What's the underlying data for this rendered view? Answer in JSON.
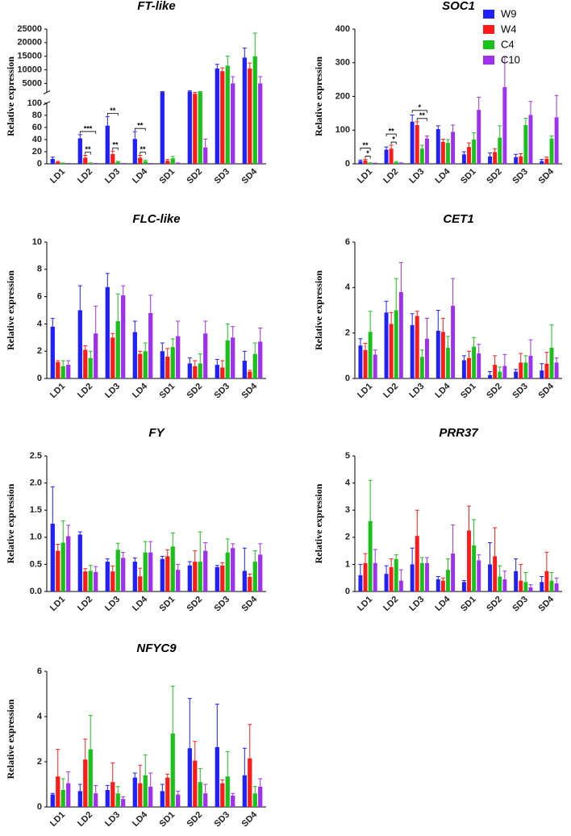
{
  "chart_data": [
    {
      "type": "bar",
      "title": "FT-like",
      "y_label": "Relative expression",
      "categories": [
        "LD1",
        "LD2",
        "LD3",
        "LD4",
        "SD1",
        "SD2",
        "SD3",
        "SD4"
      ],
      "series": [
        {
          "name": "W9",
          "color": "#1f1fff",
          "values": [
            8,
            42,
            63,
            41,
            1800,
            2000,
            10500,
            14500
          ],
          "errors": [
            3,
            6,
            15,
            12,
            200,
            300,
            1500,
            3500
          ]
        },
        {
          "name": "W4",
          "color": "#ff1a1a",
          "values": [
            3,
            10,
            16,
            10,
            5,
            1500,
            9500,
            10500
          ],
          "errors": [
            1,
            4,
            5,
            4,
            2,
            200,
            1200,
            2000
          ]
        },
        {
          "name": "C4",
          "color": "#19c219",
          "values": [
            1,
            1,
            3,
            4,
            9,
            1800,
            11500,
            15000
          ],
          "errors": [
            0.5,
            0.5,
            1,
            2,
            3,
            200,
            3500,
            8500
          ]
        },
        {
          "name": "C10",
          "color": "#a030f0",
          "values": [
            0.5,
            0.5,
            0.5,
            0.5,
            1,
            27,
            5000,
            5000
          ],
          "errors": [
            0.2,
            0.2,
            0.2,
            0.2,
            0.5,
            14,
            2500,
            2500
          ]
        }
      ],
      "ylim": [
        0,
        25000
      ],
      "axis_break": [
        100,
        1700
      ],
      "yticks": [
        0,
        20,
        40,
        60,
        80,
        100,
        5000,
        10000,
        15000,
        20000,
        25000
      ],
      "annotations": [
        {
          "text": "**",
          "category": "LD2",
          "series": [
            "W4",
            "C4"
          ]
        },
        {
          "text": "***",
          "category": "LD2",
          "series": [
            "W9",
            "C10"
          ]
        },
        {
          "text": "**",
          "category": "LD3",
          "series": [
            "W4",
            "C4"
          ]
        },
        {
          "text": "**",
          "category": "LD3",
          "series": [
            "W9",
            "C4"
          ]
        },
        {
          "text": "**",
          "category": "LD4",
          "series": [
            "W4",
            "C4"
          ]
        },
        {
          "text": "**",
          "category": "LD4",
          "series": [
            "W9",
            "C4"
          ]
        }
      ]
    },
    {
      "type": "bar",
      "title": "SOC1",
      "y_label": "Relative expression",
      "legend": "top-right",
      "categories": [
        "LD1",
        "LD2",
        "LD3",
        "LD4",
        "SD1",
        "SD2",
        "SD3",
        "SD4"
      ],
      "series": [
        {
          "name": "W9",
          "color": "#1f1fff",
          "values": [
            8,
            42,
            125,
            103,
            28,
            22,
            20,
            8
          ],
          "errors": [
            3,
            8,
            20,
            10,
            8,
            10,
            8,
            5
          ]
        },
        {
          "name": "W4",
          "color": "#ff1a1a",
          "values": [
            10,
            45,
            115,
            65,
            50,
            35,
            22,
            15
          ],
          "errors": [
            3,
            10,
            10,
            8,
            12,
            10,
            8,
            5
          ]
        },
        {
          "name": "C4",
          "color": "#19c219",
          "values": [
            2,
            5,
            45,
            62,
            72,
            78,
            115,
            75
          ],
          "errors": [
            1,
            2,
            10,
            10,
            20,
            35,
            20,
            8
          ]
        },
        {
          "name": "C10",
          "color": "#a030f0",
          "values": [
            1,
            2,
            75,
            95,
            160,
            228,
            145,
            138
          ],
          "errors": [
            1,
            1,
            8,
            20,
            38,
            90,
            40,
            65
          ]
        }
      ],
      "ylim": [
        0,
        400
      ],
      "yticks": [
        0,
        100,
        200,
        300,
        400
      ],
      "annotations": [
        {
          "text": "*",
          "category": "LD1",
          "series": [
            "W4",
            "C4"
          ]
        },
        {
          "text": "**",
          "category": "LD1",
          "series": [
            "W9",
            "C4"
          ]
        },
        {
          "text": "*",
          "category": "LD2",
          "series": [
            "W4",
            "C4"
          ]
        },
        {
          "text": "**",
          "category": "LD2",
          "series": [
            "W9",
            "C4"
          ]
        },
        {
          "text": "**",
          "category": "LD3",
          "series": [
            "W4",
            "C10"
          ]
        },
        {
          "text": "*",
          "category": "LD3",
          "series": [
            "W9",
            "C10"
          ]
        }
      ]
    },
    {
      "type": "bar",
      "title": "FLC-like",
      "y_label": "Relative expression",
      "categories": [
        "LD1",
        "LD2",
        "LD3",
        "LD4",
        "SD1",
        "SD2",
        "SD3",
        "SD4"
      ],
      "series": [
        {
          "name": "W9",
          "color": "#1f1fff",
          "values": [
            3.8,
            5,
            6.7,
            3.4,
            2,
            1.1,
            1,
            1.3
          ],
          "errors": [
            0.6,
            1.8,
            1,
            0.8,
            0.6,
            0.4,
            0.4,
            0.7
          ]
        },
        {
          "name": "W4",
          "color": "#ff1a1a",
          "values": [
            1.2,
            2.1,
            3,
            1.8,
            1.6,
            0.9,
            0.8,
            0.5
          ],
          "errors": [
            0.1,
            0.3,
            0.3,
            0.2,
            0.6,
            0.4,
            0.5,
            0.1
          ]
        },
        {
          "name": "C4",
          "color": "#19c219",
          "values": [
            0.9,
            1.5,
            4.2,
            2,
            2.3,
            1.1,
            2.8,
            1.8
          ],
          "errors": [
            0.4,
            0.5,
            2,
            0.6,
            0.6,
            0.7,
            1.2,
            0.8
          ]
        },
        {
          "name": "C10",
          "color": "#a030f0",
          "values": [
            1,
            3.3,
            6.1,
            4.8,
            3.1,
            3.3,
            3,
            2.7
          ],
          "errors": [
            0.3,
            2,
            0.7,
            1.3,
            1.1,
            0.9,
            0.8,
            1
          ]
        }
      ],
      "ylim": [
        0,
        10
      ],
      "yticks": [
        0,
        2,
        4,
        6,
        8,
        10
      ]
    },
    {
      "type": "bar",
      "title": "CET1",
      "y_label": "Relative expression",
      "categories": [
        "LD1",
        "LD2",
        "LD3",
        "LD4",
        "SD1",
        "SD2",
        "SD3",
        "SD4"
      ],
      "series": [
        {
          "name": "W9",
          "color": "#1f1fff",
          "values": [
            1.45,
            2.9,
            2.35,
            2.1,
            0.8,
            0.15,
            0.3,
            0.35
          ],
          "errors": [
            0.3,
            0.5,
            0.5,
            0.9,
            0.2,
            0.15,
            0.1,
            0.3
          ]
        },
        {
          "name": "W4",
          "color": "#ff1a1a",
          "values": [
            1.25,
            2.4,
            2.75,
            2.05,
            0.9,
            0.6,
            0.7,
            0.65
          ],
          "errors": [
            0.3,
            0.5,
            0.2,
            0.6,
            0.3,
            0.4,
            0.4,
            0.5
          ]
        },
        {
          "name": "C4",
          "color": "#19c219",
          "values": [
            2.05,
            3,
            0.95,
            1.35,
            1.4,
            0.3,
            0.7,
            1.35
          ],
          "errors": [
            0.9,
            1.4,
            0.3,
            0.5,
            0.4,
            0.2,
            0.3,
            1
          ]
        },
        {
          "name": "C10",
          "color": "#a030f0",
          "values": [
            1.05,
            3.8,
            1.75,
            3.2,
            1.1,
            0.55,
            1,
            0.7
          ],
          "errors": [
            0.2,
            1.3,
            0.9,
            1.2,
            0.4,
            0.5,
            0.7,
            0.2
          ]
        }
      ],
      "ylim": [
        0,
        6
      ],
      "yticks": [
        0,
        2,
        4,
        6
      ]
    },
    {
      "type": "bar",
      "title": "FY",
      "y_label": "Relative expression",
      "categories": [
        "LD1",
        "LD2",
        "LD3",
        "LD4",
        "SD1",
        "SD2",
        "SD3",
        "SD4"
      ],
      "series": [
        {
          "name": "W9",
          "color": "#1f1fff",
          "values": [
            1.25,
            1.05,
            0.55,
            0.55,
            0.6,
            0.48,
            0.45,
            0.38
          ],
          "errors": [
            0.68,
            0.05,
            0.05,
            0.07,
            0.05,
            0.07,
            0.03,
            0.42
          ]
        },
        {
          "name": "W4",
          "color": "#ff1a1a",
          "values": [
            0.75,
            0.37,
            0.37,
            0.28,
            0.65,
            0.55,
            0.48,
            0.27
          ],
          "errors": [
            0.12,
            0.05,
            0.1,
            0.15,
            0.12,
            0.2,
            0.05,
            0.05
          ]
        },
        {
          "name": "C4",
          "color": "#19c219",
          "values": [
            0.9,
            0.38,
            0.77,
            0.72,
            0.83,
            0.55,
            0.72,
            0.55
          ],
          "errors": [
            0.4,
            0.1,
            0.12,
            0.2,
            0.25,
            0.55,
            0.25,
            0.2
          ]
        },
        {
          "name": "C10",
          "color": "#a030f0",
          "values": [
            1.02,
            0.36,
            0.62,
            0.72,
            0.4,
            0.75,
            0.8,
            0.68
          ],
          "errors": [
            0.2,
            0.1,
            0.1,
            0.2,
            0.1,
            0.15,
            0.08,
            0.2
          ]
        }
      ],
      "ylim": [
        0,
        2.5
      ],
      "yticks": [
        {
          "value": 0,
          "label": "0.0"
        },
        0.5,
        {
          "value": 1,
          "label": "1.0"
        },
        1.5,
        {
          "value": 2,
          "label": "2.0"
        },
        2.5
      ]
    },
    {
      "type": "bar",
      "title": "PRR37",
      "y_label": "Relative expression",
      "categories": [
        "LD1",
        "LD2",
        "LD3",
        "LD4",
        "SD1",
        "SD2",
        "SD3",
        "SD4"
      ],
      "series": [
        {
          "name": "W9",
          "color": "#1f1fff",
          "values": [
            0.6,
            0.65,
            1,
            0.45,
            0.35,
            1,
            0.75,
            0.35
          ],
          "errors": [
            0.4,
            0.3,
            0.6,
            0.1,
            0.05,
            0.8,
            0.45,
            0.2
          ]
        },
        {
          "name": "W4",
          "color": "#ff1a1a",
          "values": [
            1.05,
            0.9,
            2.05,
            0.4,
            2.25,
            1.3,
            0.4,
            0.75
          ],
          "errors": [
            0.35,
            0.3,
            0.95,
            0.1,
            0.9,
            1.05,
            0.6,
            0.7
          ]
        },
        {
          "name": "C4",
          "color": "#19c219",
          "values": [
            2.6,
            1.2,
            1.05,
            0.8,
            1.7,
            0.55,
            0.35,
            0.4
          ],
          "errors": [
            1.5,
            0.15,
            0.2,
            0.4,
            0.95,
            0.4,
            0.35,
            0.3
          ]
        },
        {
          "name": "C10",
          "color": "#a030f0",
          "values": [
            1.05,
            0.4,
            1.05,
            1.4,
            1.15,
            0.45,
            0.15,
            0.3
          ],
          "errors": [
            0.5,
            0.4,
            0.2,
            1.05,
            0.2,
            0.3,
            0.1,
            0.2
          ]
        }
      ],
      "ylim": [
        0,
        5
      ],
      "yticks": [
        0,
        1,
        2,
        3,
        4,
        5
      ]
    },
    {
      "type": "bar",
      "title": "NFYC9",
      "y_label": "Relative expression",
      "categories": [
        "LD1",
        "LD2",
        "LD3",
        "LD4",
        "SD1",
        "SD2",
        "SD3",
        "SD4"
      ],
      "series": [
        {
          "name": "W9",
          "color": "#1f1fff",
          "values": [
            0.55,
            0.7,
            0.75,
            1.3,
            0.7,
            2.6,
            2.65,
            1.4
          ],
          "errors": [
            0.05,
            0.3,
            0.2,
            0.2,
            0.3,
            2.2,
            1.9,
            1.2
          ]
        },
        {
          "name": "W4",
          "color": "#ff1a1a",
          "values": [
            1.35,
            2.1,
            1.1,
            1.05,
            1.3,
            2.05,
            1.05,
            2.15
          ],
          "errors": [
            1.2,
            0.9,
            0.85,
            0.8,
            0.15,
            0.85,
            0.15,
            1.5
          ]
        },
        {
          "name": "C4",
          "color": "#19c219",
          "values": [
            0.75,
            2.55,
            0.6,
            1.4,
            3.25,
            1.1,
            1.35,
            0.6
          ],
          "errors": [
            0.5,
            1.5,
            0.3,
            0.9,
            2.1,
            0.6,
            1.1,
            0.3
          ]
        },
        {
          "name": "C10",
          "color": "#a030f0",
          "values": [
            1.05,
            0.6,
            0.35,
            0.9,
            0.55,
            0.6,
            0.5,
            0.9
          ],
          "errors": [
            0.5,
            0.35,
            0.1,
            0.6,
            0.15,
            0.4,
            0.1,
            0.35
          ]
        }
      ],
      "ylim": [
        0,
        6
      ],
      "yticks": [
        0,
        2,
        4,
        6
      ]
    }
  ]
}
